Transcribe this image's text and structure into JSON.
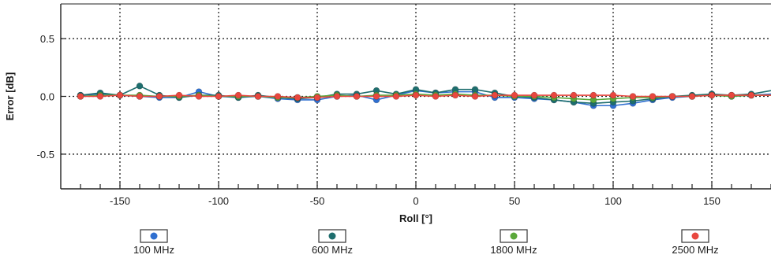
{
  "chart_data": {
    "type": "line",
    "xlabel": "Roll [°]",
    "ylabel": "Error [dB]",
    "xlim": [
      -180,
      180
    ],
    "ylim": [
      -0.8,
      0.8
    ],
    "x_ticks": [
      -150,
      -100,
      -50,
      0,
      50,
      100,
      150
    ],
    "y_ticks": [
      0.5,
      0.0,
      -0.5
    ],
    "y_tick_labels": [
      "0.5",
      "0.0",
      "-0.5"
    ],
    "grid": "dotted",
    "legend_position": "bottom",
    "x": [
      -170,
      -160,
      -150,
      -140,
      -130,
      -120,
      -110,
      -100,
      -90,
      -80,
      -70,
      -60,
      -50,
      -40,
      -30,
      -20,
      -10,
      0,
      10,
      20,
      30,
      40,
      50,
      60,
      70,
      80,
      90,
      100,
      110,
      120,
      130,
      140,
      150,
      160,
      170,
      180
    ],
    "series": [
      {
        "name": "100 MHz",
        "color": "#2f6fd0",
        "values": [
          0.01,
          0.02,
          0.01,
          0.0,
          -0.01,
          -0.01,
          0.04,
          0.0,
          -0.01,
          0.0,
          -0.02,
          -0.03,
          -0.03,
          0.0,
          0.01,
          -0.03,
          0.01,
          0.05,
          0.03,
          0.04,
          0.04,
          -0.01,
          -0.01,
          -0.02,
          -0.03,
          -0.05,
          -0.08,
          -0.08,
          -0.06,
          -0.03,
          -0.01,
          0.0,
          0.02,
          0.0,
          0.01,
          0.02
        ]
      },
      {
        "name": "600 MHz",
        "color": "#1e6e6e",
        "values": [
          0.01,
          0.03,
          0.01,
          0.09,
          0.01,
          -0.01,
          0.01,
          0.01,
          -0.01,
          0.01,
          -0.01,
          -0.02,
          -0.01,
          0.02,
          0.02,
          0.05,
          0.02,
          0.06,
          0.03,
          0.06,
          0.06,
          0.03,
          0.0,
          -0.01,
          -0.03,
          -0.05,
          -0.06,
          -0.05,
          -0.04,
          -0.02,
          0.0,
          0.01,
          0.02,
          0.01,
          0.02,
          0.05
        ]
      },
      {
        "name": "1800 MHz",
        "color": "#5aa83a",
        "values": [
          0.0,
          0.01,
          0.01,
          0.01,
          0.0,
          0.0,
          0.01,
          0.0,
          0.0,
          0.0,
          -0.01,
          -0.01,
          0.0,
          0.01,
          0.0,
          0.01,
          0.01,
          0.02,
          0.01,
          0.02,
          0.01,
          0.01,
          0.0,
          0.0,
          -0.01,
          -0.02,
          -0.03,
          -0.02,
          -0.01,
          -0.01,
          0.0,
          0.0,
          0.01,
          0.0,
          0.01,
          0.01
        ]
      },
      {
        "name": "2500 MHz",
        "color": "#e8473f",
        "values": [
          0.0,
          0.0,
          0.01,
          0.0,
          0.0,
          0.01,
          0.0,
          0.0,
          0.01,
          0.0,
          0.0,
          -0.01,
          -0.01,
          0.0,
          0.0,
          0.0,
          0.0,
          0.01,
          0.0,
          0.01,
          0.0,
          0.01,
          0.01,
          0.01,
          0.01,
          0.01,
          0.01,
          0.01,
          0.0,
          0.0,
          0.0,
          0.0,
          0.01,
          0.01,
          0.01,
          0.01
        ]
      }
    ]
  }
}
